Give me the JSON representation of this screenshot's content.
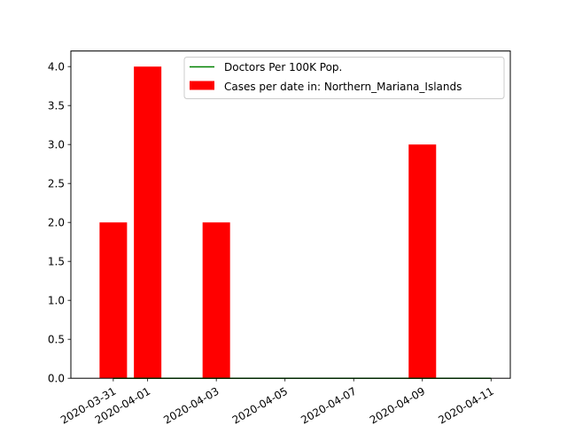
{
  "chart_data": {
    "type": "bar",
    "categories": [
      "2020-03-31",
      "2020-04-01",
      "2020-04-03",
      "2020-04-09"
    ],
    "series": [
      {
        "name": "Cases per date in: Northern_Mariana_Islands",
        "type": "bar",
        "color": "#ff0000",
        "x": [
          "2020-03-31",
          "2020-04-01",
          "2020-04-03",
          "2020-04-09"
        ],
        "values": [
          2,
          4,
          2,
          3
        ]
      },
      {
        "name": "Doctors Per 100K Pop.",
        "type": "line",
        "color": "#008000",
        "x": [
          "2020-03-31",
          "2020-04-11"
        ],
        "values": [
          0,
          0
        ]
      }
    ],
    "xlim": [
      "2020-03-30",
      "2020-04-12"
    ],
    "ylim": [
      0,
      4.2
    ],
    "x_ticks": [
      "2020-03-31",
      "2020-04-01",
      "2020-04-03",
      "2020-04-05",
      "2020-04-07",
      "2020-04-09",
      "2020-04-11"
    ],
    "y_ticks": [
      "0.0",
      "0.5",
      "1.0",
      "1.5",
      "2.0",
      "2.5",
      "3.0",
      "3.5",
      "4.0"
    ],
    "legend": {
      "position": "top-right",
      "entries": [
        "Doctors Per 100K Pop.",
        "Cases per date in: Northern_Mariana_Islands"
      ]
    },
    "grid": false,
    "title": "",
    "xlabel": "",
    "ylabel": ""
  }
}
